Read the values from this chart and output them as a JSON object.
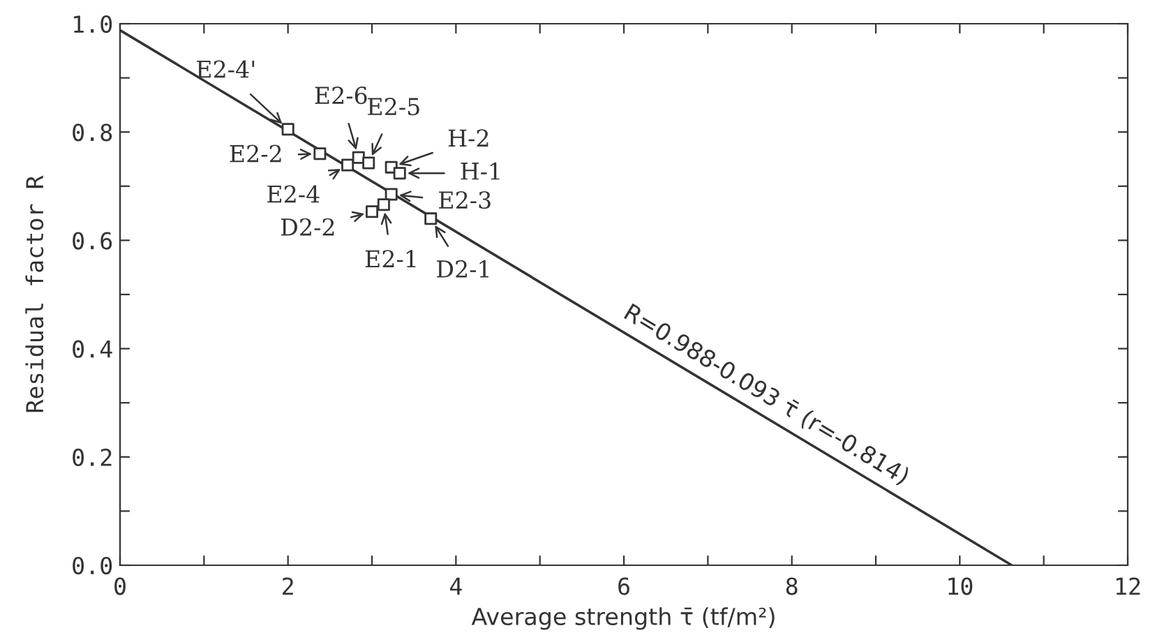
{
  "chart_data": {
    "type": "scatter",
    "xlabel": "Average strength τ̄ (tf/m²)",
    "ylabel": "Residual factor R",
    "xlim": [
      0,
      12
    ],
    "ylim": [
      0.0,
      1.0
    ],
    "xticks": [
      0,
      {
        "value": 1,
        "label": null
      },
      2,
      {
        "value": 3,
        "label": null
      },
      4,
      {
        "value": 5,
        "label": null
      },
      6,
      {
        "value": 7,
        "label": null
      },
      8,
      {
        "value": 9,
        "label": null
      },
      10,
      {
        "value": 11,
        "label": null
      },
      12
    ],
    "yticks": [
      {
        "value": 0.0,
        "label": "0.0"
      },
      {
        "value": 0.1,
        "label": null
      },
      0.2,
      {
        "value": 0.3,
        "label": null
      },
      0.4,
      {
        "value": 0.5,
        "label": null
      },
      0.6,
      {
        "value": 0.7,
        "label": null
      },
      0.8,
      {
        "value": 0.9,
        "label": null
      },
      {
        "value": 1.0,
        "label": "1.0"
      }
    ],
    "grid": false,
    "marker": "square",
    "series": [
      {
        "color": "#333333",
        "x": [
          2.0,
          2.38,
          2.71,
          2.84,
          2.96,
          3.23,
          3.33,
          3.23,
          3.0,
          3.14,
          3.7
        ],
        "values": [
          0.805,
          0.76,
          0.739,
          0.753,
          0.743,
          0.735,
          0.724,
          0.685,
          0.653,
          0.666,
          0.64
        ]
      },
      {
        "type": "line",
        "color": "#333333",
        "line_style": "solid",
        "marker": "none",
        "x": [
          0,
          10.62
        ],
        "values": [
          0.988,
          0.0
        ]
      }
    ],
    "annotations": [
      {
        "text": "E2-4'",
        "x": 2.0,
        "y": 0.805
      },
      {
        "text": "E2-2",
        "x": 2.38,
        "y": 0.76
      },
      {
        "text": "E2-4",
        "x": 2.71,
        "y": 0.739
      },
      {
        "text": "E2-6",
        "x": 2.84,
        "y": 0.753
      },
      {
        "text": "E2-5",
        "x": 2.96,
        "y": 0.743
      },
      {
        "text": "H-2",
        "x": 3.23,
        "y": 0.735
      },
      {
        "text": "H-1",
        "x": 3.33,
        "y": 0.724
      },
      {
        "text": "E2-3",
        "x": 3.23,
        "y": 0.685
      },
      {
        "text": "D2-2",
        "x": 3.0,
        "y": 0.653
      },
      {
        "text": "E2-1",
        "x": 3.14,
        "y": 0.666
      },
      {
        "text": "D2-1",
        "x": 3.7,
        "y": 0.64
      },
      {
        "text": "R=0.988-0.093 τ̄ (r=-0.814)",
        "x": 7.6,
        "y": 0.281
      }
    ]
  }
}
